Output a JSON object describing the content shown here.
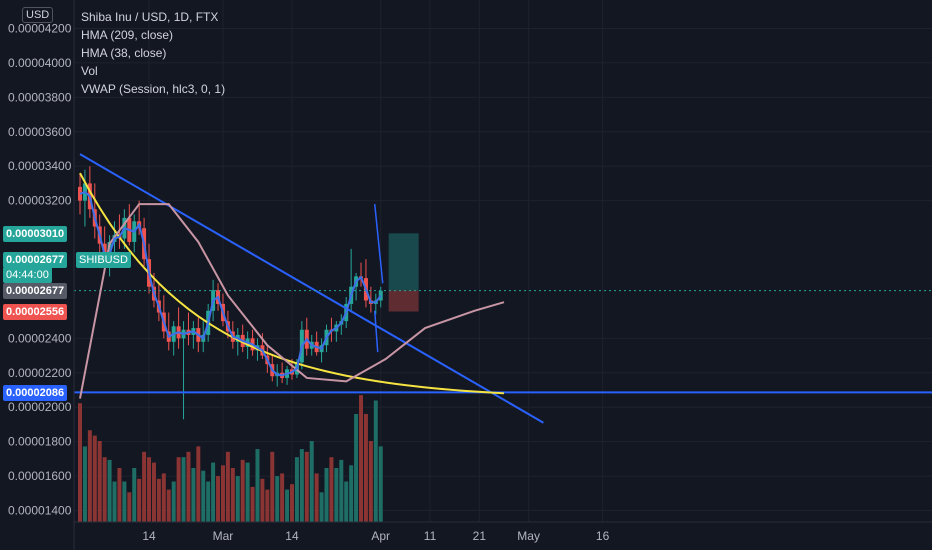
{
  "legend": {
    "title": "Shiba Inu / USD, 1D, FTX",
    "lines": [
      "HMA (209, close)",
      "HMA (38, close)",
      "Vol",
      "VWAP (Session, hlc3, 0, 1)"
    ]
  },
  "currency_badge": "USD",
  "ticker_tag": "SHIBUSD",
  "price_tags": [
    {
      "label": "0.00003010",
      "value": 3.01e-05,
      "color": "#26a69a"
    },
    {
      "label": "0.00002677",
      "sub": "04:44:00",
      "value": 2.677e-05,
      "color": "#26a69a"
    },
    {
      "label": "0.00002677",
      "value": 2.677e-05,
      "color": "#555a66"
    },
    {
      "label": "0.00002556",
      "value": 2.556e-05,
      "color": "#ef5350"
    },
    {
      "label": "0.00002086",
      "value": 2.086e-05,
      "color": "#2962ff"
    }
  ],
  "colors": {
    "up": "#26a69a",
    "down": "#ef5350",
    "trendline": "#2962ff",
    "hma_long": "#c795a3",
    "hma_short": "#3f6fe8",
    "vwap": "#f5e342"
  },
  "chart_data": {
    "type": "candlestick",
    "title": "Shiba Inu / USD, 1D, FTX",
    "price_axis": {
      "ticks": [
        "0.00004200",
        "0.00004000",
        "0.00003800",
        "0.00003600",
        "0.00003400",
        "0.00003200",
        "0.00002400",
        "0.00002200",
        "0.00002000",
        "0.00001800",
        "0.00001600",
        "0.00001400"
      ],
      "tick_values": [
        4.2e-05,
        4e-05,
        3.8e-05,
        3.6e-05,
        3.4e-05,
        3.2e-05,
        2.4e-05,
        2.2e-05,
        2e-05,
        1.8e-05,
        1.6e-05,
        1.4e-05
      ],
      "ylim": [
        1.38e-05,
        4.22e-05
      ]
    },
    "time_axis": {
      "ticks": [
        "14",
        "Mar",
        "14",
        "Apr",
        "11",
        "21",
        "May",
        "16"
      ],
      "tick_days": [
        14,
        29,
        43,
        61,
        71,
        81,
        91,
        106
      ]
    },
    "candles": [
      [
        3.28,
        3.36,
        3.12,
        3.2
      ],
      [
        3.2,
        3.38,
        3.05,
        3.3
      ],
      [
        3.3,
        3.4,
        3.1,
        3.15
      ],
      [
        3.15,
        3.3,
        2.98,
        3.05
      ],
      [
        3.05,
        3.12,
        2.9,
        2.95
      ],
      [
        2.95,
        3.05,
        2.78,
        2.82
      ],
      [
        2.82,
        3.0,
        2.76,
        2.96
      ],
      [
        2.96,
        3.08,
        2.88,
        3.0
      ],
      [
        3.0,
        3.12,
        2.92,
        2.98
      ],
      [
        2.98,
        3.15,
        2.92,
        3.1
      ],
      [
        3.1,
        3.18,
        2.94,
        2.96
      ],
      [
        2.96,
        3.12,
        2.9,
        3.08
      ],
      [
        3.08,
        3.2,
        3.0,
        3.04
      ],
      [
        3.04,
        3.1,
        2.82,
        2.86
      ],
      [
        2.86,
        2.95,
        2.66,
        2.7
      ],
      [
        2.7,
        2.78,
        2.58,
        2.62
      ],
      [
        2.62,
        2.72,
        2.5,
        2.55
      ],
      [
        2.55,
        2.65,
        2.4,
        2.44
      ],
      [
        2.44,
        2.55,
        2.33,
        2.38
      ],
      [
        2.38,
        2.5,
        2.3,
        2.47
      ],
      [
        2.47,
        2.58,
        2.34,
        2.4
      ],
      [
        2.4,
        2.5,
        1.93,
        2.45
      ],
      [
        2.45,
        2.55,
        2.36,
        2.42
      ],
      [
        2.42,
        2.5,
        2.34,
        2.46
      ],
      [
        2.46,
        2.52,
        2.32,
        2.38
      ],
      [
        2.38,
        2.5,
        2.32,
        2.42
      ],
      [
        2.42,
        2.6,
        2.38,
        2.56
      ],
      [
        2.56,
        2.74,
        2.5,
        2.68
      ],
      [
        2.68,
        2.72,
        2.56,
        2.6
      ],
      [
        2.6,
        2.66,
        2.47,
        2.5
      ],
      [
        2.5,
        2.56,
        2.4,
        2.44
      ],
      [
        2.44,
        2.5,
        2.34,
        2.38
      ],
      [
        2.38,
        2.46,
        2.3,
        2.42
      ],
      [
        2.42,
        2.48,
        2.32,
        2.35
      ],
      [
        2.35,
        2.44,
        2.28,
        2.4
      ],
      [
        2.4,
        2.45,
        2.3,
        2.33
      ],
      [
        2.33,
        2.4,
        2.27,
        2.36
      ],
      [
        2.36,
        2.43,
        2.28,
        2.3
      ],
      [
        2.3,
        2.36,
        2.2,
        2.25
      ],
      [
        2.25,
        2.3,
        2.15,
        2.18
      ],
      [
        2.18,
        2.25,
        2.12,
        2.2
      ],
      [
        2.2,
        2.26,
        2.14,
        2.17
      ],
      [
        2.17,
        2.24,
        2.13,
        2.22
      ],
      [
        2.22,
        2.28,
        2.16,
        2.19
      ],
      [
        2.19,
        2.28,
        2.17,
        2.26
      ],
      [
        2.26,
        2.5,
        2.22,
        2.45
      ],
      [
        2.45,
        2.52,
        2.3,
        2.34
      ],
      [
        2.34,
        2.42,
        2.3,
        2.38
      ],
      [
        2.38,
        2.44,
        2.3,
        2.32
      ],
      [
        2.32,
        2.4,
        2.26,
        2.36
      ],
      [
        2.36,
        2.48,
        2.32,
        2.45
      ],
      [
        2.45,
        2.52,
        2.38,
        2.44
      ],
      [
        2.44,
        2.5,
        2.38,
        2.48
      ],
      [
        2.48,
        2.54,
        2.42,
        2.5
      ],
      [
        2.5,
        2.64,
        2.46,
        2.6
      ],
      [
        2.6,
        2.92,
        2.56,
        2.7
      ],
      [
        2.7,
        2.78,
        2.62,
        2.76
      ],
      [
        2.76,
        2.84,
        2.7,
        2.75
      ],
      [
        2.75,
        2.86,
        2.58,
        2.62
      ],
      [
        2.62,
        2.7,
        2.55,
        2.6
      ],
      [
        2.6,
        2.66,
        2.54,
        2.62
      ],
      [
        2.62,
        2.7,
        2.58,
        2.677
      ]
    ],
    "candle_units": "1e-5 USD (open, high, low, close)",
    "volume": [
      440,
      280,
      340,
      320,
      300,
      240,
      230,
      150,
      200,
      150,
      110,
      200,
      160,
      260,
      240,
      220,
      160,
      180,
      120,
      150,
      240,
      240,
      260,
      200,
      280,
      190,
      150,
      220,
      170,
      210,
      260,
      200,
      170,
      230,
      220,
      130,
      270,
      160,
      120,
      260,
      170,
      180,
      120,
      140,
      240,
      270,
      260,
      300,
      180,
      110,
      200,
      240,
      200,
      230,
      150,
      210,
      400,
      470,
      400,
      300,
      450,
      280
    ],
    "series": [
      {
        "name": "HMA (209, close)",
        "color": "#c795a3"
      },
      {
        "name": "HMA (38, close)",
        "color": "#3f6fe8"
      },
      {
        "name": "Vol"
      },
      {
        "name": "VWAP (Session, hlc3, 0, 1)",
        "color": "#f5e342"
      }
    ],
    "horizontal_line": 2.086e-05,
    "last_price": 2.677e-05
  }
}
